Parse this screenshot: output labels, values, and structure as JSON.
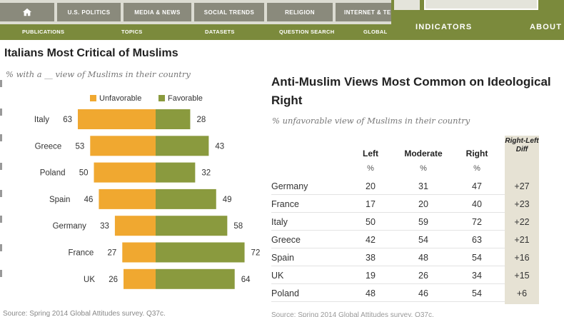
{
  "nav": {
    "tabs": [
      "U.S. POLITICS",
      "MEDIA & NEWS",
      "SOCIAL TRENDS",
      "RELIGION",
      "INTERNET & TE"
    ],
    "subnav": [
      "PUBLICATIONS",
      "TOPICS",
      "DATASETS",
      "QUESTION SEARCH",
      "GLOBAL"
    ],
    "right_links": [
      "INDICATORS",
      "ABOUT"
    ]
  },
  "chart_data": [
    {
      "type": "bar",
      "title": "Italians Most Critical of Muslims",
      "subtitle": "% with a __ view of Muslims in their country",
      "categories": [
        "Italy",
        "Greece",
        "Poland",
        "Spain",
        "Germany",
        "France",
        "UK"
      ],
      "series": [
        {
          "name": "Unfavorable",
          "color": "#f0a830",
          "values": [
            63,
            53,
            50,
            46,
            33,
            27,
            26
          ]
        },
        {
          "name": "Favorable",
          "color": "#8a9a3e",
          "values": [
            28,
            43,
            32,
            49,
            58,
            72,
            64
          ]
        }
      ],
      "source": "Source: Spring 2014 Global Attitudes survey. Q37c."
    },
    {
      "type": "table",
      "title": "Anti-Muslim Views Most Common on Ideological Right",
      "subtitle": "% unfavorable view of Muslims in their country",
      "columns": [
        "Left",
        "Moderate",
        "Right"
      ],
      "units": [
        "%",
        "%",
        "%"
      ],
      "diff_header": [
        "Right-Left",
        "Diff"
      ],
      "rows": [
        {
          "country": "Germany",
          "left": 20,
          "moderate": 31,
          "right": 47,
          "diff": "+27"
        },
        {
          "country": "France",
          "left": 17,
          "moderate": 20,
          "right": 40,
          "diff": "+23"
        },
        {
          "country": "Italy",
          "left": 50,
          "moderate": 59,
          "right": 72,
          "diff": "+22"
        },
        {
          "country": "Greece",
          "left": 42,
          "moderate": 54,
          "right": 63,
          "diff": "+21"
        },
        {
          "country": "Spain",
          "left": 38,
          "moderate": 48,
          "right": 54,
          "diff": "+16"
        },
        {
          "country": "UK",
          "left": 19,
          "moderate": 26,
          "right": 34,
          "diff": "+15"
        },
        {
          "country": "Poland",
          "left": 48,
          "moderate": 46,
          "right": 54,
          "diff": "+6"
        }
      ],
      "source": "Source: Spring 2014 Global Attitudes survey. Q37c."
    }
  ]
}
